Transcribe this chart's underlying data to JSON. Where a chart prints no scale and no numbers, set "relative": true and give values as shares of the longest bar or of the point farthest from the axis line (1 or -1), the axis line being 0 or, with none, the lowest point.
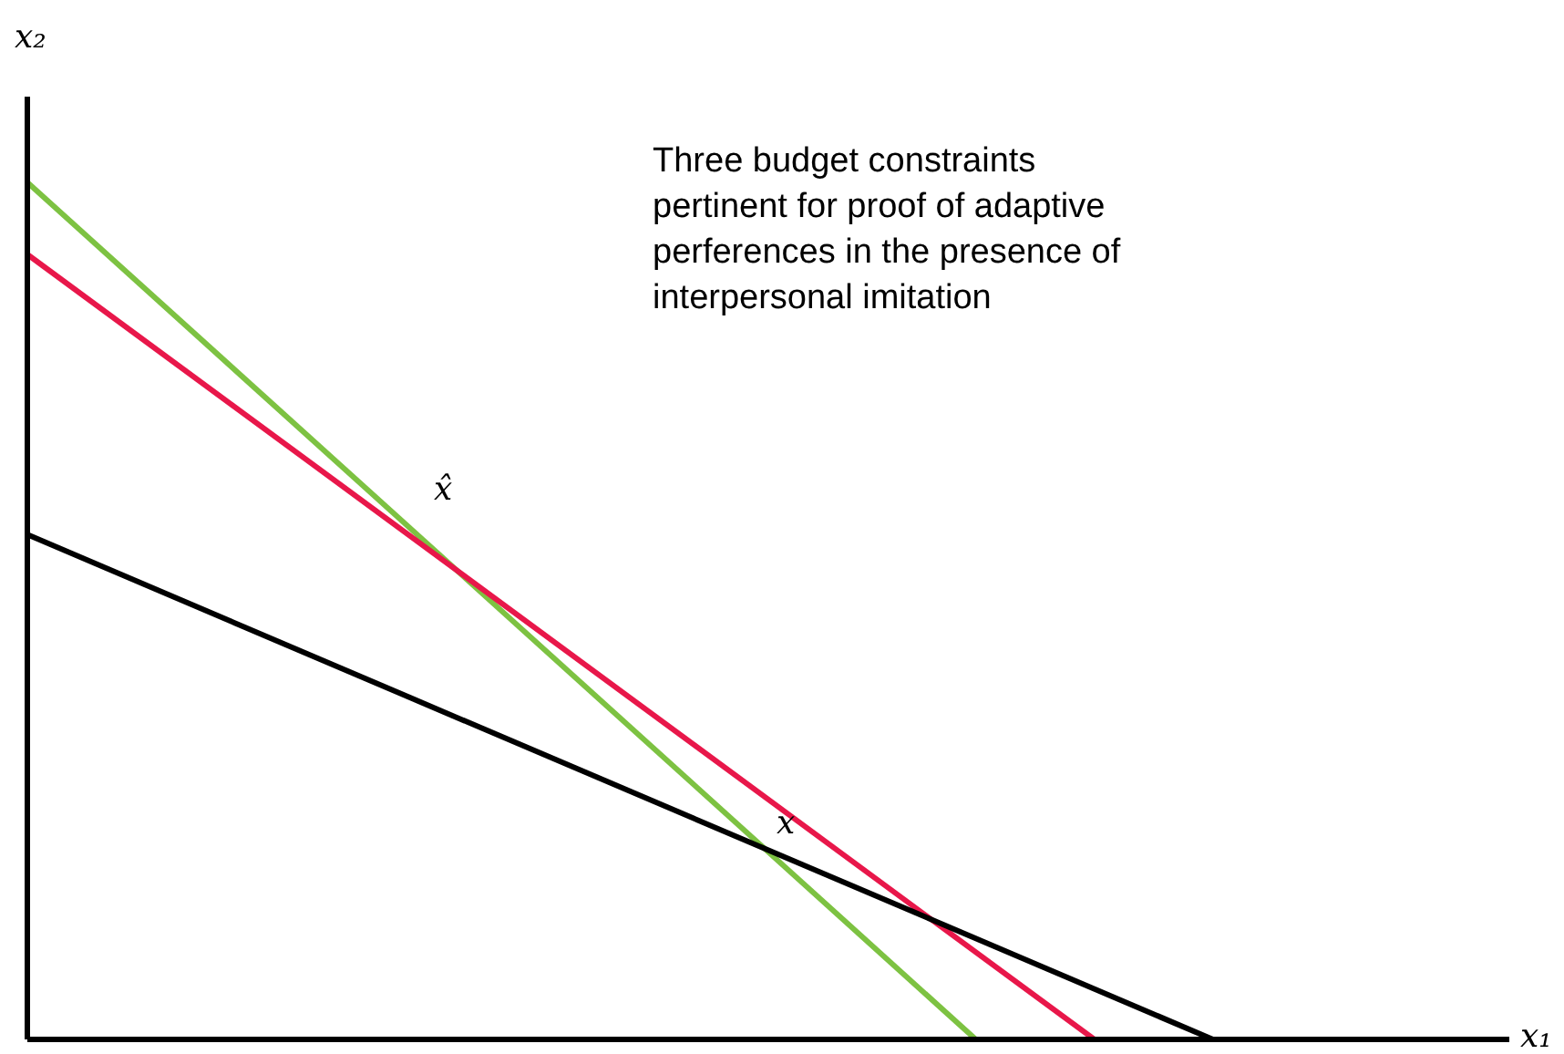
{
  "chart_data": {
    "type": "line",
    "relative": true,
    "title": "Three budget constraints pertinent for proof of adaptive perferences in the presence of interpersonal imitation",
    "xlabel": "x₁",
    "ylabel": "x₂",
    "categories": [
      null,
      null,
      null,
      null,
      null,
      null,
      null,
      null,
      null,
      null,
      null,
      null,
      null,
      null,
      null,
      null,
      null,
      null,
      null,
      null,
      null,
      null,
      null,
      null,
      null,
      null
    ],
    "series": [
      {
        "color": "#7dc242",
        "values": [
          1,
          null,
          null,
          null,
          null,
          null,
          null,
          null,
          null,
          null,
          null,
          null,
          null,
          null,
          null,
          null,
          0,
          null,
          null,
          null,
          null,
          null,
          null,
          null,
          null,
          null
        ]
      },
      {
        "color": "#e8174a",
        "values": [
          0.916,
          null,
          null,
          null,
          null,
          null,
          null,
          null,
          null,
          null,
          null,
          null,
          null,
          null,
          null,
          null,
          null,
          null,
          0,
          null,
          null,
          null,
          null,
          null,
          null,
          null
        ]
      },
      {
        "color": "#000000",
        "values": [
          0.589,
          null,
          null,
          null,
          null,
          null,
          null,
          null,
          null,
          null,
          null,
          null,
          null,
          null,
          null,
          null,
          null,
          null,
          null,
          null,
          0,
          null,
          null,
          null,
          null,
          null
        ]
      }
    ],
    "annotations": [
      "x̂",
      "x"
    ]
  }
}
